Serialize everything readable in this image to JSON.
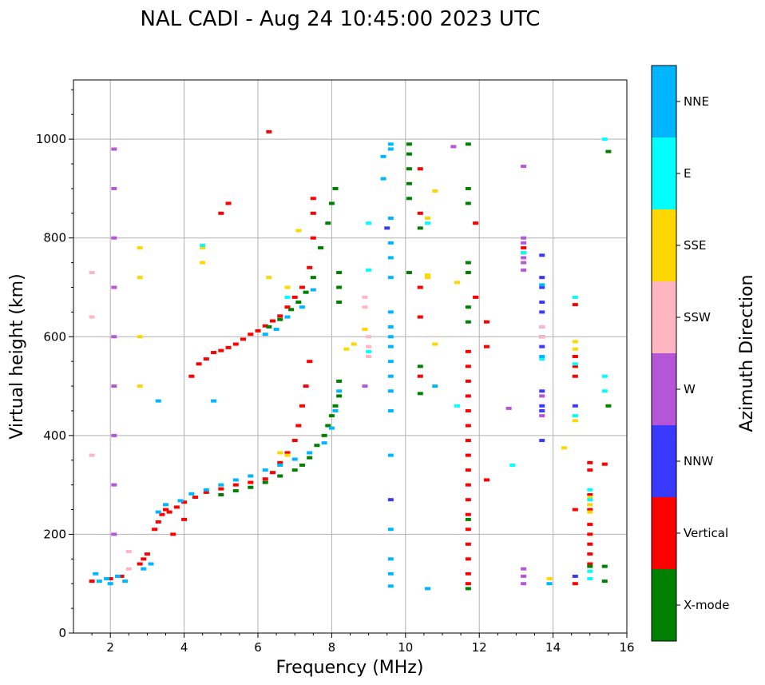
{
  "chart_data": {
    "type": "scatter",
    "title": "NAL CADI - Aug 24 10:45:00 2023 UTC",
    "xlabel": "Frequency (MHz)",
    "ylabel": "Virtual height (km)",
    "xlim": [
      1,
      16
    ],
    "ylim": [
      0,
      1120
    ],
    "xticks": [
      2,
      4,
      6,
      8,
      10,
      12,
      14,
      16
    ],
    "yticks": [
      0,
      200,
      400,
      600,
      800,
      1000
    ],
    "grid": true,
    "colorbar": {
      "label": "Azimuth Direction",
      "categories": [
        {
          "name": "X-mode",
          "color": "#008000"
        },
        {
          "name": "Vertical",
          "color": "#ff0000"
        },
        {
          "name": "NNW",
          "color": "#3a3aff"
        },
        {
          "name": "W",
          "color": "#b556d8"
        },
        {
          "name": "SSW",
          "color": "#ffb6c1"
        },
        {
          "name": "SSE",
          "color": "#ffd700"
        },
        {
          "name": "E",
          "color": "#00ffff"
        },
        {
          "name": "NNE",
          "color": "#00b7ff"
        }
      ]
    },
    "series": [
      {
        "name": "Vertical",
        "points": [
          [
            1.5,
            105
          ],
          [
            2.0,
            110
          ],
          [
            2.3,
            115
          ],
          [
            2.8,
            140
          ],
          [
            2.9,
            150
          ],
          [
            3.0,
            160
          ],
          [
            3.2,
            210
          ],
          [
            3.3,
            225
          ],
          [
            3.4,
            240
          ],
          [
            3.5,
            250
          ],
          [
            3.6,
            245
          ],
          [
            3.8,
            255
          ],
          [
            4.0,
            265
          ],
          [
            4.3,
            275
          ],
          [
            4.6,
            285
          ],
          [
            5.0,
            292
          ],
          [
            5.4,
            300
          ],
          [
            5.8,
            305
          ],
          [
            6.2,
            312
          ],
          [
            6.4,
            325
          ],
          [
            6.6,
            345
          ],
          [
            6.8,
            365
          ],
          [
            7.0,
            390
          ],
          [
            7.1,
            420
          ],
          [
            7.2,
            460
          ],
          [
            7.3,
            500
          ],
          [
            7.4,
            550
          ],
          [
            3.7,
            200
          ],
          [
            4.0,
            230
          ],
          [
            4.2,
            520
          ],
          [
            4.4,
            545
          ],
          [
            4.6,
            555
          ],
          [
            4.8,
            568
          ],
          [
            5.0,
            572
          ],
          [
            5.2,
            578
          ],
          [
            5.4,
            585
          ],
          [
            5.6,
            595
          ],
          [
            5.8,
            605
          ],
          [
            6.0,
            612
          ],
          [
            6.2,
            622
          ],
          [
            6.4,
            632
          ],
          [
            6.6,
            642
          ],
          [
            6.8,
            660
          ],
          [
            7.0,
            680
          ],
          [
            7.2,
            700
          ],
          [
            7.4,
            740
          ],
          [
            7.5,
            800
          ],
          [
            7.5,
            850
          ],
          [
            7.5,
            880
          ],
          [
            5.0,
            850
          ],
          [
            5.2,
            870
          ],
          [
            6.3,
            1015
          ],
          [
            10.4,
            940
          ],
          [
            10.4,
            850
          ],
          [
            10.4,
            700
          ],
          [
            10.4,
            640
          ],
          [
            10.4,
            520
          ],
          [
            11.7,
            570
          ],
          [
            11.7,
            540
          ],
          [
            11.7,
            510
          ],
          [
            11.7,
            480
          ],
          [
            11.7,
            450
          ],
          [
            11.7,
            420
          ],
          [
            11.7,
            390
          ],
          [
            11.7,
            360
          ],
          [
            11.7,
            330
          ],
          [
            11.7,
            300
          ],
          [
            11.7,
            270
          ],
          [
            11.7,
            240
          ],
          [
            11.7,
            210
          ],
          [
            11.7,
            180
          ],
          [
            11.7,
            150
          ],
          [
            11.7,
            120
          ],
          [
            11.7,
            100
          ],
          [
            11.9,
            830
          ],
          [
            11.9,
            680
          ],
          [
            12.2,
            630
          ],
          [
            12.2,
            580
          ],
          [
            12.2,
            310
          ],
          [
            13.2,
            780
          ],
          [
            13.2,
            770
          ],
          [
            14.6,
            665
          ],
          [
            14.6,
            560
          ],
          [
            14.6,
            540
          ],
          [
            14.6,
            520
          ],
          [
            14.6,
            250
          ],
          [
            14.6,
            100
          ],
          [
            15.0,
            345
          ],
          [
            15.0,
            330
          ],
          [
            15.0,
            280
          ],
          [
            15.0,
            250
          ],
          [
            15.0,
            220
          ],
          [
            15.0,
            200
          ],
          [
            15.0,
            180
          ],
          [
            15.0,
            160
          ],
          [
            15.0,
            140
          ],
          [
            15.4,
            342
          ]
        ]
      },
      {
        "name": "X-mode",
        "points": [
          [
            5.0,
            280
          ],
          [
            5.4,
            288
          ],
          [
            5.8,
            295
          ],
          [
            6.2,
            305
          ],
          [
            6.6,
            318
          ],
          [
            7.0,
            330
          ],
          [
            7.2,
            340
          ],
          [
            7.4,
            355
          ],
          [
            7.6,
            380
          ],
          [
            7.8,
            400
          ],
          [
            7.9,
            420
          ],
          [
            8.0,
            440
          ],
          [
            8.1,
            460
          ],
          [
            8.2,
            480
          ],
          [
            8.2,
            510
          ],
          [
            6.3,
            620
          ],
          [
            6.6,
            635
          ],
          [
            6.9,
            655
          ],
          [
            7.1,
            670
          ],
          [
            7.3,
            690
          ],
          [
            7.5,
            720
          ],
          [
            7.7,
            780
          ],
          [
            7.9,
            830
          ],
          [
            8.0,
            870
          ],
          [
            8.1,
            900
          ],
          [
            8.2,
            730
          ],
          [
            8.2,
            700
          ],
          [
            8.2,
            670
          ],
          [
            10.1,
            990
          ],
          [
            10.1,
            970
          ],
          [
            10.1,
            940
          ],
          [
            10.1,
            910
          ],
          [
            10.1,
            880
          ],
          [
            10.1,
            730
          ],
          [
            10.4,
            820
          ],
          [
            10.4,
            540
          ],
          [
            10.4,
            485
          ],
          [
            11.7,
            990
          ],
          [
            11.7,
            900
          ],
          [
            11.7,
            870
          ],
          [
            11.7,
            750
          ],
          [
            11.7,
            730
          ],
          [
            11.7,
            660
          ],
          [
            11.7,
            630
          ],
          [
            11.7,
            230
          ],
          [
            11.7,
            90
          ],
          [
            15.0,
            135
          ],
          [
            15.4,
            135
          ],
          [
            15.4,
            105
          ],
          [
            15.5,
            975
          ],
          [
            15.5,
            460
          ]
        ]
      },
      {
        "name": "NNW",
        "points": [
          [
            9.5,
            820
          ],
          [
            9.6,
            270
          ],
          [
            13.7,
            765
          ],
          [
            13.7,
            720
          ],
          [
            13.7,
            700
          ],
          [
            13.7,
            670
          ],
          [
            13.7,
            650
          ],
          [
            13.7,
            620
          ],
          [
            13.7,
            600
          ],
          [
            13.7,
            580
          ],
          [
            13.7,
            490
          ],
          [
            13.7,
            460
          ],
          [
            13.7,
            450
          ],
          [
            13.7,
            390
          ],
          [
            14.6,
            460
          ],
          [
            14.6,
            115
          ]
        ]
      },
      {
        "name": "W",
        "points": [
          [
            2.1,
            980
          ],
          [
            2.1,
            900
          ],
          [
            2.1,
            800
          ],
          [
            2.1,
            700
          ],
          [
            2.1,
            600
          ],
          [
            2.1,
            500
          ],
          [
            2.1,
            400
          ],
          [
            2.1,
            300
          ],
          [
            2.1,
            200
          ],
          [
            8.9,
            500
          ],
          [
            11.3,
            985
          ],
          [
            12.8,
            455
          ],
          [
            13.2,
            945
          ],
          [
            13.2,
            800
          ],
          [
            13.2,
            790
          ],
          [
            13.2,
            760
          ],
          [
            13.2,
            750
          ],
          [
            13.2,
            735
          ],
          [
            13.2,
            130
          ],
          [
            13.2,
            115
          ],
          [
            13.2,
            100
          ],
          [
            13.7,
            480
          ],
          [
            13.7,
            440
          ]
        ]
      },
      {
        "name": "SSW",
        "points": [
          [
            1.5,
            730
          ],
          [
            1.5,
            640
          ],
          [
            1.5,
            360
          ],
          [
            2.5,
            165
          ],
          [
            2.5,
            130
          ],
          [
            8.9,
            680
          ],
          [
            8.9,
            660
          ],
          [
            9.0,
            600
          ],
          [
            9.0,
            580
          ],
          [
            9.0,
            560
          ],
          [
            13.7,
            620
          ],
          [
            13.7,
            600
          ]
        ]
      },
      {
        "name": "SSE",
        "points": [
          [
            2.8,
            780
          ],
          [
            2.8,
            720
          ],
          [
            2.8,
            600
          ],
          [
            2.8,
            500
          ],
          [
            4.5,
            780
          ],
          [
            4.5,
            750
          ],
          [
            6.3,
            720
          ],
          [
            6.8,
            700
          ],
          [
            7.1,
            815
          ],
          [
            8.4,
            575
          ],
          [
            8.6,
            585
          ],
          [
            8.9,
            615
          ],
          [
            10.6,
            725
          ],
          [
            10.6,
            720
          ],
          [
            10.6,
            840
          ],
          [
            10.8,
            895
          ],
          [
            10.8,
            585
          ],
          [
            11.4,
            710
          ],
          [
            14.3,
            375
          ],
          [
            14.6,
            590
          ],
          [
            14.6,
            575
          ],
          [
            14.6,
            440
          ],
          [
            14.6,
            430
          ],
          [
            15.0,
            275
          ],
          [
            15.0,
            260
          ],
          [
            15.0,
            245
          ],
          [
            13.9,
            110
          ],
          [
            6.8,
            360
          ],
          [
            6.6,
            365
          ]
        ]
      },
      {
        "name": "E",
        "points": [
          [
            4.5,
            785
          ],
          [
            6.8,
            680
          ],
          [
            9.0,
            830
          ],
          [
            9.0,
            735
          ],
          [
            9.0,
            570
          ],
          [
            10.6,
            830
          ],
          [
            11.4,
            460
          ],
          [
            12.9,
            340
          ],
          [
            13.2,
            770
          ],
          [
            13.7,
            555
          ],
          [
            14.6,
            680
          ],
          [
            14.6,
            545
          ],
          [
            14.6,
            440
          ],
          [
            15.0,
            290
          ],
          [
            15.0,
            270
          ],
          [
            15.4,
            520
          ],
          [
            15.4,
            490
          ],
          [
            15.4,
            1000
          ],
          [
            15.0,
            125
          ],
          [
            15.0,
            110
          ]
        ]
      },
      {
        "name": "NNE",
        "points": [
          [
            1.6,
            120
          ],
          [
            1.7,
            105
          ],
          [
            1.9,
            110
          ],
          [
            2.0,
            100
          ],
          [
            2.2,
            115
          ],
          [
            2.4,
            105
          ],
          [
            2.9,
            130
          ],
          [
            3.1,
            140
          ],
          [
            3.3,
            245
          ],
          [
            3.5,
            260
          ],
          [
            3.9,
            268
          ],
          [
            4.2,
            282
          ],
          [
            4.6,
            290
          ],
          [
            5.0,
            300
          ],
          [
            5.4,
            310
          ],
          [
            5.8,
            318
          ],
          [
            6.2,
            330
          ],
          [
            6.6,
            340
          ],
          [
            7.0,
            352
          ],
          [
            7.4,
            365
          ],
          [
            7.8,
            385
          ],
          [
            8.0,
            415
          ],
          [
            8.1,
            450
          ],
          [
            8.2,
            490
          ],
          [
            6.2,
            605
          ],
          [
            6.5,
            615
          ],
          [
            6.8,
            640
          ],
          [
            7.2,
            660
          ],
          [
            7.5,
            695
          ],
          [
            9.4,
            965
          ],
          [
            9.4,
            920
          ],
          [
            9.6,
            990
          ],
          [
            9.6,
            980
          ],
          [
            9.6,
            840
          ],
          [
            9.6,
            790
          ],
          [
            9.6,
            760
          ],
          [
            9.6,
            720
          ],
          [
            9.6,
            650
          ],
          [
            9.6,
            620
          ],
          [
            9.6,
            600
          ],
          [
            9.6,
            580
          ],
          [
            9.6,
            550
          ],
          [
            9.6,
            520
          ],
          [
            9.6,
            490
          ],
          [
            9.6,
            450
          ],
          [
            9.6,
            360
          ],
          [
            9.6,
            210
          ],
          [
            9.6,
            150
          ],
          [
            9.6,
            120
          ],
          [
            9.6,
            95
          ],
          [
            10.8,
            500
          ],
          [
            10.6,
            90
          ],
          [
            13.7,
            705
          ],
          [
            13.7,
            560
          ],
          [
            13.9,
            100
          ],
          [
            4.8,
            470
          ],
          [
            3.3,
            470
          ]
        ]
      }
    ]
  }
}
